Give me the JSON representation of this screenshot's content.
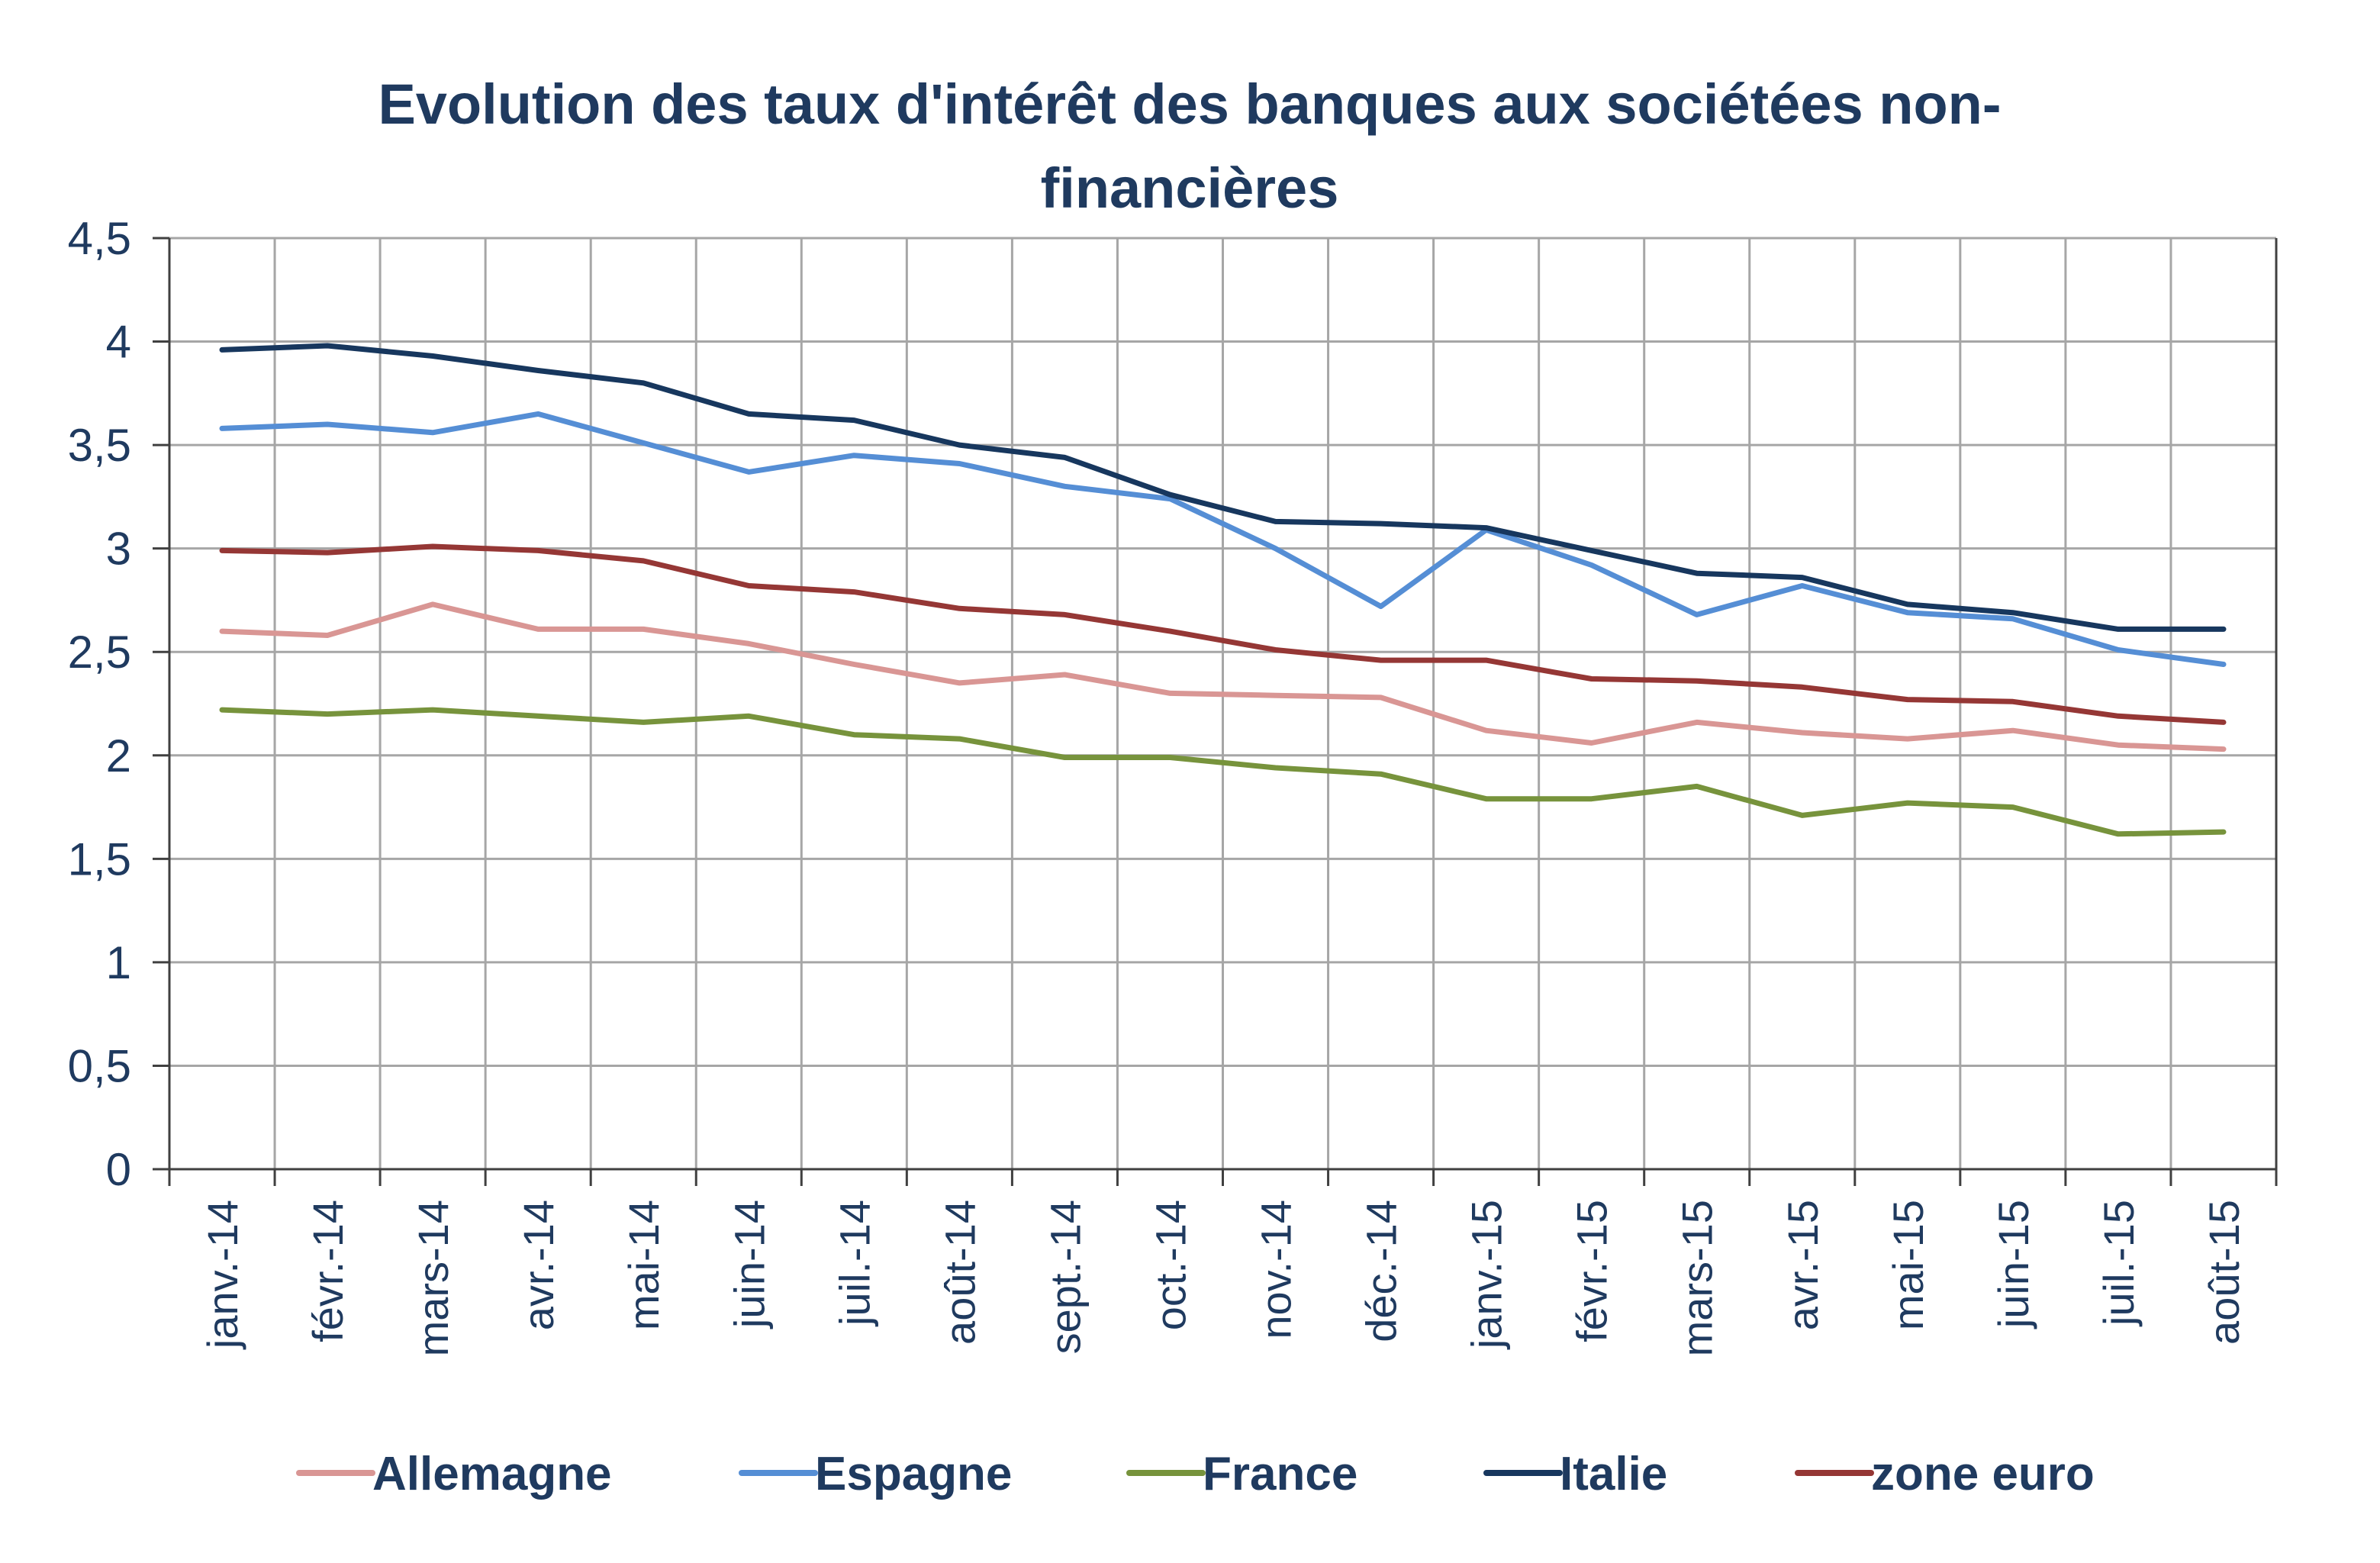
{
  "chart_data": {
    "type": "line",
    "title": "Evolution des taux d'intérêt des banques aux sociétées non-financières",
    "title_lines": [
      "Evolution des taux d'intérêt des banques aux sociétées non-",
      "financières"
    ],
    "xlabel": "",
    "ylabel": "",
    "ylim": [
      0,
      4.5
    ],
    "yticks": [
      "0",
      "0,5",
      "1",
      "1,5",
      "2",
      "2,5",
      "3",
      "3,5",
      "4",
      "4,5"
    ],
    "categories": [
      "janv.-14",
      "févr.-14",
      "mars-14",
      "avr.-14",
      "mai-14",
      "juin-14",
      "juil.-14",
      "août-14",
      "sept.-14",
      "oct.-14",
      "nov.-14",
      "déc.-14",
      "janv.-15",
      "févr.-15",
      "mars-15",
      "avr.-15",
      "mai-15",
      "juin-15",
      "juil.-15",
      "août-15"
    ],
    "grid": true,
    "legend_position": "bottom",
    "series": [
      {
        "name": "Allemagne",
        "color": "#d99694",
        "values": [
          2.6,
          2.58,
          2.73,
          2.61,
          2.61,
          2.54,
          2.44,
          2.35,
          2.39,
          2.3,
          2.29,
          2.28,
          2.12,
          2.06,
          2.16,
          2.11,
          2.08,
          2.12,
          2.05,
          2.03
        ]
      },
      {
        "name": "Espagne",
        "color": "#558ed5",
        "values": [
          3.58,
          3.6,
          3.56,
          3.65,
          3.51,
          3.37,
          3.45,
          3.41,
          3.3,
          3.24,
          3.0,
          2.72,
          3.09,
          2.92,
          2.68,
          2.82,
          2.69,
          2.66,
          2.51,
          2.44
        ]
      },
      {
        "name": "France",
        "color": "#77933c",
        "values": [
          2.22,
          2.2,
          2.22,
          2.19,
          2.16,
          2.19,
          2.1,
          2.08,
          1.99,
          1.99,
          1.94,
          1.91,
          1.79,
          1.79,
          1.85,
          1.71,
          1.77,
          1.75,
          1.62,
          1.63
        ]
      },
      {
        "name": "Italie",
        "color": "#17375e",
        "values": [
          3.96,
          3.98,
          3.93,
          3.86,
          3.8,
          3.65,
          3.62,
          3.5,
          3.44,
          3.26,
          3.13,
          3.12,
          3.1,
          2.99,
          2.88,
          2.86,
          2.73,
          2.69,
          2.61,
          2.61
        ]
      },
      {
        "name": "zone euro",
        "color": "#953735",
        "values": [
          2.99,
          2.98,
          3.01,
          2.99,
          2.94,
          2.82,
          2.79,
          2.71,
          2.68,
          2.6,
          2.51,
          2.46,
          2.46,
          2.37,
          2.36,
          2.33,
          2.27,
          2.26,
          2.19,
          2.16
        ]
      }
    ]
  }
}
